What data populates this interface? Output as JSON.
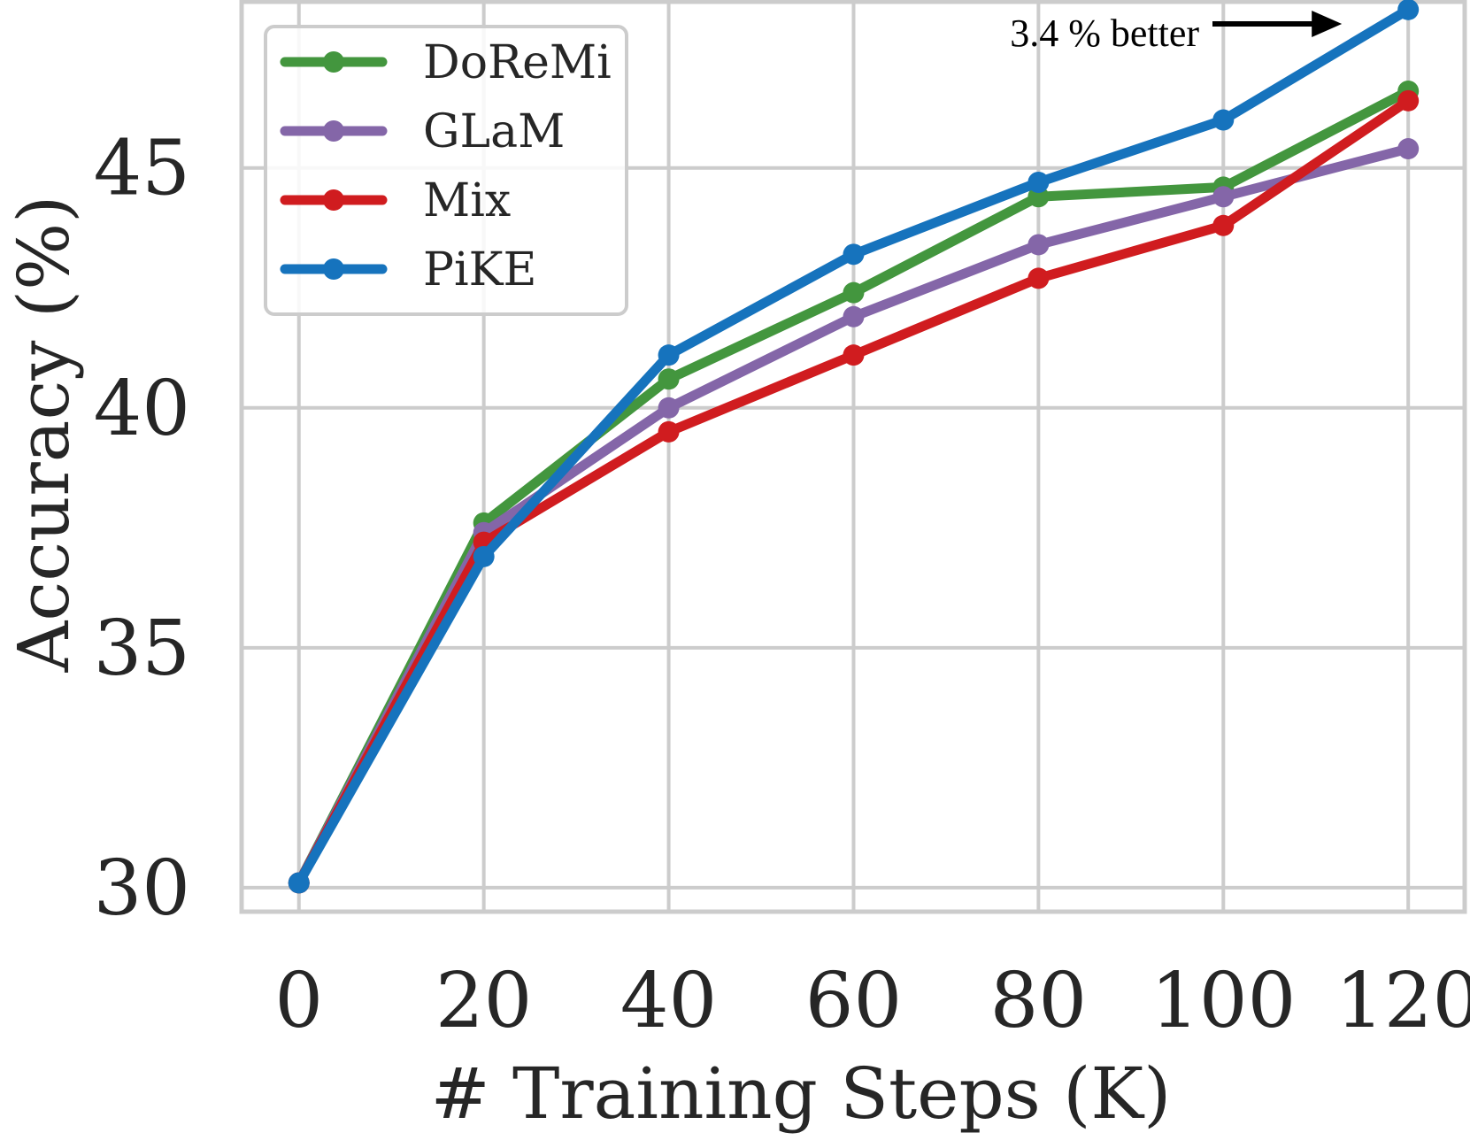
{
  "chart_data": {
    "type": "line",
    "title": "",
    "xlabel": "# Training Steps (K)",
    "ylabel": "Accuracy (%)",
    "x": [
      0,
      20,
      40,
      60,
      80,
      100,
      120
    ],
    "xticks": [
      "0",
      "20",
      "40",
      "60",
      "80",
      "100",
      "120"
    ],
    "yticks": [
      "30",
      "35",
      "40",
      "45"
    ],
    "ytick_values": [
      30,
      35,
      40,
      45
    ],
    "xlim": [
      -6.2,
      126.3
    ],
    "ylim": [
      29.5,
      48.5
    ],
    "grid": true,
    "legend_position": "top-left",
    "series": [
      {
        "name": "DoReMi",
        "color": "#43963e",
        "values": [
          30.1,
          37.6,
          40.6,
          42.4,
          44.4,
          44.6,
          46.6
        ]
      },
      {
        "name": "GLaM",
        "color": "#8466a8",
        "values": [
          30.1,
          37.4,
          40.0,
          41.9,
          43.4,
          44.4,
          45.4
        ]
      },
      {
        "name": "Mix",
        "color": "#d01c1f",
        "values": [
          30.1,
          37.2,
          39.5,
          41.1,
          42.7,
          43.8,
          46.4
        ]
      },
      {
        "name": "PiKE",
        "color": "#1673bd",
        "values": [
          30.1,
          36.9,
          41.1,
          43.2,
          44.7,
          46.0,
          48.3
        ]
      }
    ],
    "annotation": {
      "text": "3.4 % better",
      "arrow_to_x": 120,
      "arrow_to_y": 48.3
    }
  }
}
